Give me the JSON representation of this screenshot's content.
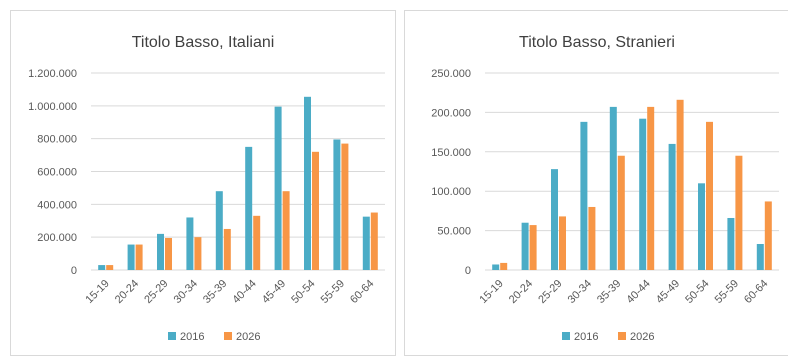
{
  "colors": {
    "s2016": "#4bacc6",
    "s2026": "#f79646",
    "grid": "#d9d9d9",
    "text": "#595959",
    "title": "#404040"
  },
  "chart_data": [
    {
      "type": "bar",
      "title": "Titolo Basso, Italiani",
      "categories": [
        "15-19",
        "20-24",
        "25-29",
        "30-34",
        "35-39",
        "40-44",
        "45-49",
        "50-54",
        "55-59",
        "60-64"
      ],
      "ylim": [
        0,
        1200000
      ],
      "yticks": [
        "0",
        "200.000",
        "400.000",
        "600.000",
        "800.000",
        "1.000.000",
        "1.200.000"
      ],
      "grid": true,
      "legend": "bottom",
      "series": [
        {
          "name": "2016",
          "values": [
            30000,
            155000,
            220000,
            320000,
            480000,
            750000,
            995000,
            1055000,
            795000,
            325000
          ]
        },
        {
          "name": "2026",
          "values": [
            30000,
            155000,
            195000,
            200000,
            250000,
            330000,
            480000,
            720000,
            770000,
            350000
          ]
        }
      ]
    },
    {
      "type": "bar",
      "title": "Titolo Basso, Stranieri",
      "categories": [
        "15-19",
        "20-24",
        "25-29",
        "30-34",
        "35-39",
        "40-44",
        "45-49",
        "50-54",
        "55-59",
        "60-64"
      ],
      "ylim": [
        0,
        250000
      ],
      "yticks": [
        "0",
        "50.000",
        "100.000",
        "150.000",
        "200.000",
        "250.000"
      ],
      "grid": true,
      "legend": "bottom",
      "series": [
        {
          "name": "2016",
          "values": [
            7000,
            60000,
            128000,
            188000,
            207000,
            192000,
            160000,
            110000,
            66000,
            33000
          ]
        },
        {
          "name": "2026",
          "values": [
            9000,
            57000,
            68000,
            80000,
            145000,
            207000,
            216000,
            188000,
            145000,
            87000
          ]
        }
      ]
    }
  ]
}
